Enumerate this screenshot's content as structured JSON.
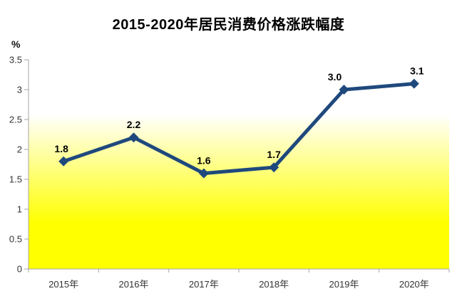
{
  "chart_data": {
    "type": "line",
    "title": "2015-2020年居民消费价格涨跌幅度",
    "ylabel": "%",
    "xlabel": "",
    "categories": [
      "2015年",
      "2016年",
      "2017年",
      "2018年",
      "2019年",
      "2020年"
    ],
    "series": [
      {
        "values": [
          1.8,
          2.2,
          1.6,
          1.7,
          3.0,
          3.1
        ],
        "labels": [
          "1.8",
          "2.2",
          "1.6",
          "1.7",
          "3.0",
          "3.1"
        ]
      }
    ],
    "ylim": [
      0,
      3.5
    ],
    "y_tick_labels": [
      "3.5",
      "3",
      "2.5",
      "2",
      "1.5",
      "1",
      "0.5",
      "0"
    ],
    "grid": false,
    "legend": "none",
    "layout_hints": {
      "label_dx": [
        -3,
        0,
        0,
        0,
        -13,
        4
      ],
      "marker": "diamond",
      "plot_bg": "vertical-gradient"
    },
    "colors": {
      "line": "#1F497D",
      "marker": "#1F497D",
      "data_label": "#000000",
      "title": "#000000",
      "axis_line": "#A6A6A6",
      "tick_label": "#333333",
      "plot_bg_top": "#FFFFFF",
      "plot_bg_bottom": "#FFFF00"
    }
  }
}
